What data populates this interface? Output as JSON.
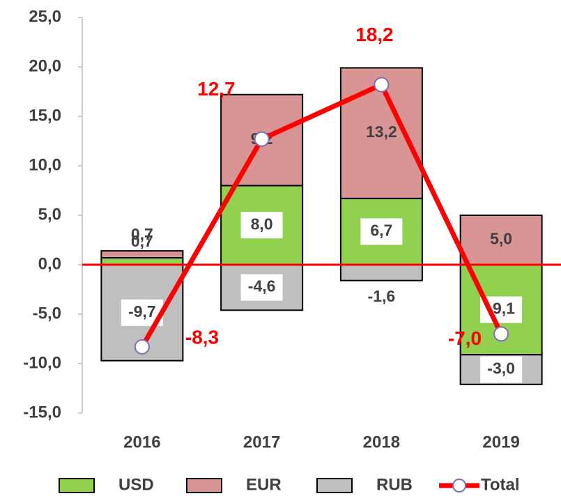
{
  "chart_data": {
    "type": "bar",
    "categories": [
      "2016",
      "2017",
      "2018",
      "2019"
    ],
    "series": [
      {
        "name": "USD",
        "color": "#92d050",
        "values": [
          0.7,
          8.0,
          6.7,
          -9.1
        ],
        "value_labels": [
          "0,7",
          "8,0",
          "6,7",
          "-9,1"
        ]
      },
      {
        "name": "EUR",
        "color": "#d99594",
        "values": [
          0.7,
          9.2,
          13.2,
          5.0
        ],
        "value_labels": [
          "0,7",
          "9,2",
          "13,2",
          "5,0"
        ]
      },
      {
        "name": "RUB",
        "color": "#bfbfbf",
        "values": [
          -9.7,
          -4.6,
          -1.6,
          -3.0
        ],
        "value_labels": [
          "-9,7",
          "-4,6",
          "-1,6",
          "-3,0"
        ]
      },
      {
        "name": "Total",
        "type": "line",
        "color": "#ff0000",
        "values": [
          -8.3,
          12.7,
          18.2,
          -7.0
        ],
        "value_labels": [
          "-8,3",
          "12,7",
          "18,2",
          "-7,0"
        ]
      }
    ],
    "stacked": true,
    "ylim": [
      -15,
      25
    ],
    "yticks": [
      {
        "value": -15,
        "label": "-15,0"
      },
      {
        "value": -10,
        "label": "-10,0"
      },
      {
        "value": -5,
        "label": "-5,0"
      },
      {
        "value": 0,
        "label": "0,0"
      },
      {
        "value": 5,
        "label": "5,0"
      },
      {
        "value": 10,
        "label": "10,0"
      },
      {
        "value": 15,
        "label": "15,0"
      },
      {
        "value": 20,
        "label": "20,0"
      },
      {
        "value": 25,
        "label": "25,0"
      }
    ],
    "legend": "bottom"
  }
}
